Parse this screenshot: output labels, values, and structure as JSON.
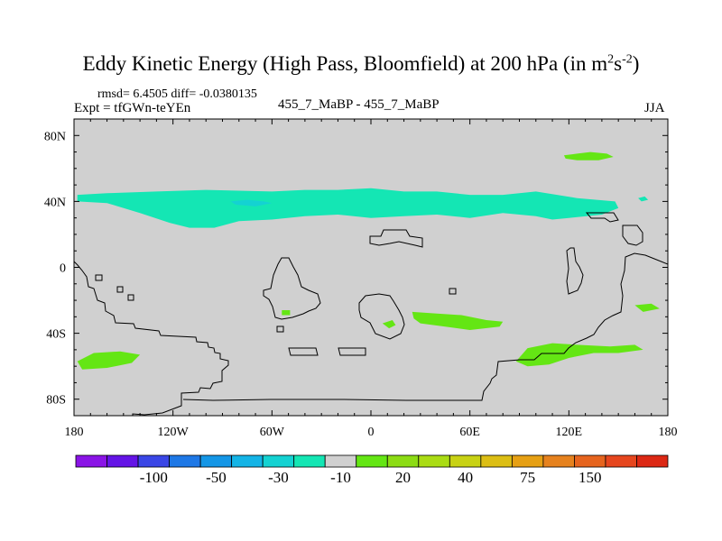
{
  "title": {
    "text": "Eddy Kinetic Energy (High Pass, Bloomfield) at 200 hPa (in m",
    "sup1": "2",
    "mid": "s",
    "sup2": "-2",
    "close": ")"
  },
  "header": {
    "stats": "rmsd= 6.4505 diff= -0.0380135",
    "expt": "Expt = tfGWn-teYEn",
    "comparison": "455_7_MaBP - 455_7_MaBP",
    "season": "JJA"
  },
  "chart_data": {
    "type": "heatmap",
    "title": "Eddy Kinetic Energy (High Pass, Bloomfield) at 200 hPa (in m^2 s^-2)",
    "projection": "cylindrical-equidistant",
    "xlim": [
      -180,
      180
    ],
    "ylim": [
      -90,
      90
    ],
    "x_ticks": [
      {
        "value": -180,
        "label": "180"
      },
      {
        "value": -120,
        "label": "120W"
      },
      {
        "value": -60,
        "label": "60W"
      },
      {
        "value": 0,
        "label": "0"
      },
      {
        "value": 60,
        "label": "60E"
      },
      {
        "value": 120,
        "label": "120E"
      },
      {
        "value": 180,
        "label": "180"
      }
    ],
    "y_ticks": [
      {
        "value": 80,
        "label": "80N"
      },
      {
        "value": 40,
        "label": "40N"
      },
      {
        "value": 0,
        "label": "0"
      },
      {
        "value": -40,
        "label": "40S"
      },
      {
        "value": -80,
        "label": "80S"
      }
    ],
    "background_color": "#d0d0d0",
    "colorbar": {
      "colors": [
        "#8a14e6",
        "#6414e6",
        "#3a46e6",
        "#1e78e6",
        "#1496e6",
        "#14b4e6",
        "#14d2d2",
        "#14e6b4",
        "#d0d0d0",
        "#64e614",
        "#8cdc14",
        "#aadc14",
        "#c8d214",
        "#dcbe14",
        "#e6a014",
        "#e6821e",
        "#e6641e",
        "#e6461e",
        "#dc2814"
      ],
      "labels": [
        {
          "after_index": 1,
          "text": "-100"
        },
        {
          "after_index": 3,
          "text": "-50"
        },
        {
          "after_index": 5,
          "text": "-30"
        },
        {
          "after_index": 7,
          "text": "-10"
        },
        {
          "after_index": 9,
          "text": "20"
        },
        {
          "after_index": 11,
          "text": "40"
        },
        {
          "after_index": 13,
          "text": "75"
        },
        {
          "after_index": 15,
          "text": "150"
        }
      ]
    },
    "regions": [
      {
        "name": "nh-midlat-band",
        "level": -10,
        "color": "#14e6b4",
        "points": [
          [
            -178,
            44
          ],
          [
            -160,
            45
          ],
          [
            -130,
            46
          ],
          [
            -100,
            47
          ],
          [
            -80,
            46.5
          ],
          [
            -60,
            46
          ],
          [
            -40,
            47
          ],
          [
            -20,
            47
          ],
          [
            0,
            48
          ],
          [
            20,
            46
          ],
          [
            40,
            46
          ],
          [
            60,
            44
          ],
          [
            80,
            44
          ],
          [
            100,
            46
          ],
          [
            125,
            42
          ],
          [
            148,
            40
          ],
          [
            150,
            36
          ],
          [
            140,
            32
          ],
          [
            120,
            30
          ],
          [
            110,
            29
          ],
          [
            100,
            31
          ],
          [
            80,
            33
          ],
          [
            60,
            30
          ],
          [
            40,
            32
          ],
          [
            20,
            31
          ],
          [
            0,
            30
          ],
          [
            -20,
            32
          ],
          [
            -40,
            31
          ],
          [
            -60,
            29
          ],
          [
            -80,
            28
          ],
          [
            -95,
            24
          ],
          [
            -110,
            24
          ],
          [
            -122,
            27
          ],
          [
            -140,
            33
          ],
          [
            -160,
            39
          ],
          [
            -178,
            40
          ]
        ]
      },
      {
        "name": "nh-midlat-core",
        "level": -30,
        "color": "#14d2d2",
        "points": [
          [
            -85,
            40
          ],
          [
            -75,
            41
          ],
          [
            -65,
            40
          ],
          [
            -60,
            39
          ],
          [
            -70,
            37
          ],
          [
            -82,
            38
          ]
        ]
      },
      {
        "name": "ne-pacific-patch",
        "level": -10,
        "color": "#14e6b4",
        "points": [
          [
            162,
            42
          ],
          [
            166,
            43
          ],
          [
            168,
            41
          ],
          [
            164,
            40
          ]
        ]
      },
      {
        "name": "n-asia-patch",
        "level": 20,
        "color": "#64e614",
        "points": [
          [
            117,
            68
          ],
          [
            125,
            69
          ],
          [
            133,
            70
          ],
          [
            143,
            69
          ],
          [
            147,
            67
          ],
          [
            138,
            65
          ],
          [
            125,
            65
          ],
          [
            118,
            66
          ]
        ]
      },
      {
        "name": "w-pacific-south-patch",
        "level": 20,
        "color": "#64e614",
        "points": [
          [
            -178,
            -57
          ],
          [
            -168,
            -52
          ],
          [
            -152,
            -51
          ],
          [
            -140,
            -53
          ],
          [
            -145,
            -58
          ],
          [
            -160,
            -61
          ],
          [
            -175,
            -62
          ]
        ]
      },
      {
        "name": "s-america-dot",
        "level": 20,
        "color": "#64e614",
        "points": [
          [
            -54,
            -26
          ],
          [
            -49,
            -26
          ],
          [
            -49,
            -29
          ],
          [
            -54,
            -29
          ]
        ]
      },
      {
        "name": "s-africa-dot",
        "level": 20,
        "color": "#64e614",
        "points": [
          [
            7,
            -34
          ],
          [
            13,
            -32
          ],
          [
            15,
            -35
          ],
          [
            11,
            -37
          ]
        ]
      },
      {
        "name": "s-indian-ocean-patch",
        "level": 20,
        "color": "#64e614",
        "points": [
          [
            25,
            -27
          ],
          [
            40,
            -28
          ],
          [
            55,
            -29
          ],
          [
            70,
            -32
          ],
          [
            80,
            -33
          ],
          [
            78,
            -36
          ],
          [
            60,
            -38
          ],
          [
            45,
            -36
          ],
          [
            30,
            -34
          ],
          [
            26,
            -31
          ]
        ]
      },
      {
        "name": "s-australia-patch",
        "level": 20,
        "color": "#64e614",
        "points": [
          [
            95,
            -49
          ],
          [
            110,
            -46
          ],
          [
            125,
            -47
          ],
          [
            145,
            -48
          ],
          [
            160,
            -47
          ],
          [
            165,
            -50
          ],
          [
            150,
            -52
          ],
          [
            135,
            -52
          ],
          [
            120,
            -55
          ],
          [
            108,
            -59
          ],
          [
            95,
            -60
          ],
          [
            88,
            -57
          ]
        ]
      },
      {
        "name": "se-pacific-patch",
        "level": 20,
        "color": "#64e614",
        "points": [
          [
            160,
            -23
          ],
          [
            170,
            -22
          ],
          [
            175,
            -25
          ],
          [
            165,
            -27
          ]
        ]
      }
    ]
  }
}
